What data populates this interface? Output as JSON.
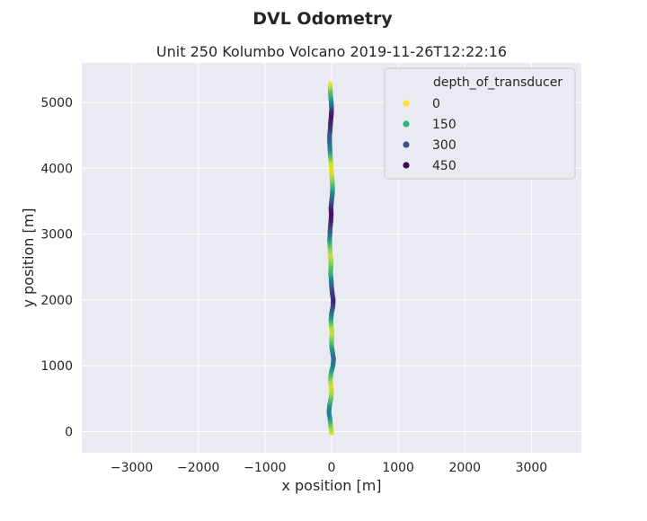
{
  "chart_data": {
    "type": "scatter",
    "suptitle": "DVL Odometry",
    "title": "Unit 250 Kolumbo Volcano 2019-11-26T12:22:16",
    "xlabel": "x position [m]",
    "ylabel": "y position [m]",
    "xlim": [
      -3750,
      3750
    ],
    "ylim": [
      -320,
      5600
    ],
    "xticks": [
      -3000,
      -2000,
      -1000,
      0,
      1000,
      2000,
      3000
    ],
    "xtick_labels": [
      "−3000",
      "−2000",
      "−1000",
      "0",
      "1000",
      "2000",
      "3000"
    ],
    "yticks": [
      0,
      1000,
      2000,
      3000,
      4000,
      5000
    ],
    "ytick_labels": [
      "0",
      "1000",
      "2000",
      "3000",
      "4000",
      "5000"
    ],
    "grid": true,
    "background": "#eaeaf2",
    "color_variable": "depth_of_transducer",
    "color_range": [
      0,
      500
    ],
    "colormap": "viridis",
    "legend": {
      "title": "depth_of_transducer",
      "position": "top-right",
      "entries": [
        {
          "label": "0",
          "value": 0,
          "color": "#fde725"
        },
        {
          "label": "150",
          "value": 150,
          "color": "#2fb47c"
        },
        {
          "label": "300",
          "value": 300,
          "color": "#3b528b"
        },
        {
          "label": "450",
          "value": 450,
          "color": "#440154"
        }
      ]
    },
    "track": {
      "y": [
        -20,
        100,
        200,
        300,
        400,
        500,
        600,
        700,
        800,
        900,
        1000,
        1100,
        1200,
        1300,
        1400,
        1500,
        1600,
        1700,
        1800,
        1900,
        2000,
        2100,
        2200,
        2300,
        2400,
        2500,
        2600,
        2700,
        2800,
        2900,
        3000,
        3100,
        3200,
        3300,
        3400,
        3500,
        3600,
        3700,
        3800,
        3900,
        4000,
        4100,
        4200,
        4300,
        4400,
        4500,
        4600,
        4700,
        4800,
        4900,
        5000,
        5100,
        5200,
        5280
      ],
      "x": [
        0,
        -15,
        -25,
        -40,
        -30,
        -10,
        0,
        -10,
        -20,
        -5,
        20,
        30,
        15,
        0,
        0,
        5,
        -5,
        -10,
        0,
        20,
        25,
        10,
        0,
        -5,
        -15,
        -10,
        -10,
        -20,
        -25,
        -30,
        -25,
        -20,
        -10,
        -5,
        -10,
        0,
        10,
        15,
        10,
        0,
        -5,
        -10,
        -20,
        -25,
        -30,
        -30,
        -20,
        -15,
        -5,
        0,
        -5,
        -15,
        -20,
        -20
      ],
      "depth": [
        20,
        100,
        220,
        300,
        250,
        150,
        60,
        30,
        80,
        180,
        280,
        330,
        300,
        220,
        120,
        40,
        60,
        180,
        300,
        380,
        440,
        420,
        380,
        300,
        200,
        150,
        80,
        40,
        100,
        200,
        300,
        380,
        440,
        470,
        450,
        380,
        300,
        220,
        120,
        50,
        20,
        40,
        150,
        260,
        320,
        360,
        400,
        440,
        470,
        430,
        300,
        200,
        120,
        20
      ]
    }
  }
}
